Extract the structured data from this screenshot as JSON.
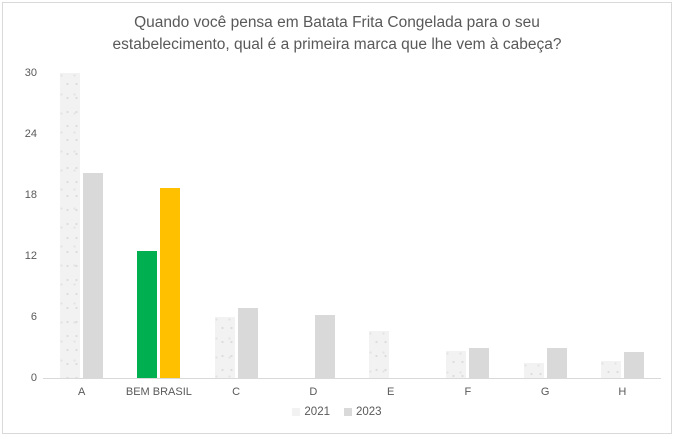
{
  "header": {
    "title_line1": "Quando você pensa em Batata Frita Congelada para o seu",
    "title_line2": "estabelecimento, qual é a primeira marca que lhe vem à cabeça?"
  },
  "chart_data": {
    "type": "bar",
    "title": "Quando você pensa em Batata Frita Congelada para o seu estabelecimento, qual é a primeira marca que lhe vem à cabeça?",
    "categories": [
      "A",
      "BEM BRASIL",
      "C",
      "D",
      "E",
      "F",
      "G",
      "H"
    ],
    "series": [
      {
        "name": "2021",
        "color": "#f2f2f2",
        "pattern": "dotted",
        "values": [
          30,
          12.5,
          6,
          0,
          4.6,
          2.7,
          1.5,
          1.7
        ]
      },
      {
        "name": "2023",
        "color": "#d9d9d9",
        "pattern": "solid",
        "values": [
          20.2,
          18.7,
          6.9,
          6.2,
          0,
          3.0,
          3.0,
          2.6
        ]
      }
    ],
    "highlight": {
      "category": "BEM BRASIL",
      "series_colors": {
        "2021": "#00b050",
        "2023": "#ffc000"
      }
    },
    "ylim": [
      0,
      30
    ],
    "yticks": [
      0,
      6,
      12,
      18,
      24,
      30
    ],
    "grid": false,
    "legend_position": "bottom",
    "legend_items": [
      "2021",
      "2023"
    ]
  },
  "colors": {
    "text": "#595959",
    "axis_line": "#d9d9d9",
    "frame_border": "#d9d9d9",
    "background": "#ffffff"
  }
}
